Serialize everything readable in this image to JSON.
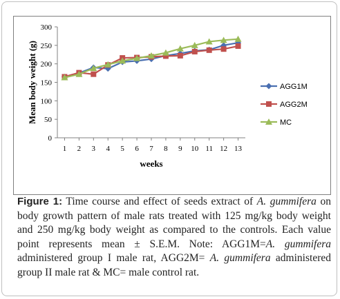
{
  "chart_data": {
    "type": "line",
    "title": "",
    "xlabel": "weeks",
    "ylabel": "Mean body weight  (g)",
    "x": [
      1,
      2,
      3,
      4,
      5,
      6,
      7,
      8,
      9,
      10,
      11,
      12,
      13
    ],
    "ylim": [
      0,
      300
    ],
    "yticks": [
      0,
      50,
      100,
      150,
      200,
      250,
      300
    ],
    "grid": false,
    "legend_position": "right",
    "series": [
      {
        "name": "AGG1M",
        "color": "#4a6fb1",
        "marker": "diamond",
        "values": [
          165,
          175,
          190,
          187,
          205,
          208,
          213,
          222,
          228,
          235,
          238,
          250,
          257
        ]
      },
      {
        "name": "AGG2M",
        "color": "#c0504d",
        "marker": "square",
        "values": [
          165,
          176,
          172,
          197,
          216,
          217,
          219,
          221,
          222,
          233,
          237,
          240,
          248
        ]
      },
      {
        "name": "MC",
        "color": "#9bbb59",
        "marker": "triangle",
        "values": [
          163,
          172,
          188,
          198,
          208,
          215,
          222,
          230,
          241,
          250,
          260,
          264,
          267
        ]
      }
    ]
  },
  "caption": {
    "label": "Figure 1:",
    "part1": " Time course and effect of seeds extract of ",
    "species": "A. gummifera",
    "part2": " on body growth pattern of male rats treated with 125 mg/kg body weight and 250 mg/kg body weight as compared to the controls. Each value point represents mean ± S.E.M. Note: AGG1M=",
    "species2": "A. gummifera",
    "part3": " administered group I male rat, AGG2M= ",
    "species3": "A. gummifera",
    "part4": " administered group II male rat & MC= male control rat."
  }
}
